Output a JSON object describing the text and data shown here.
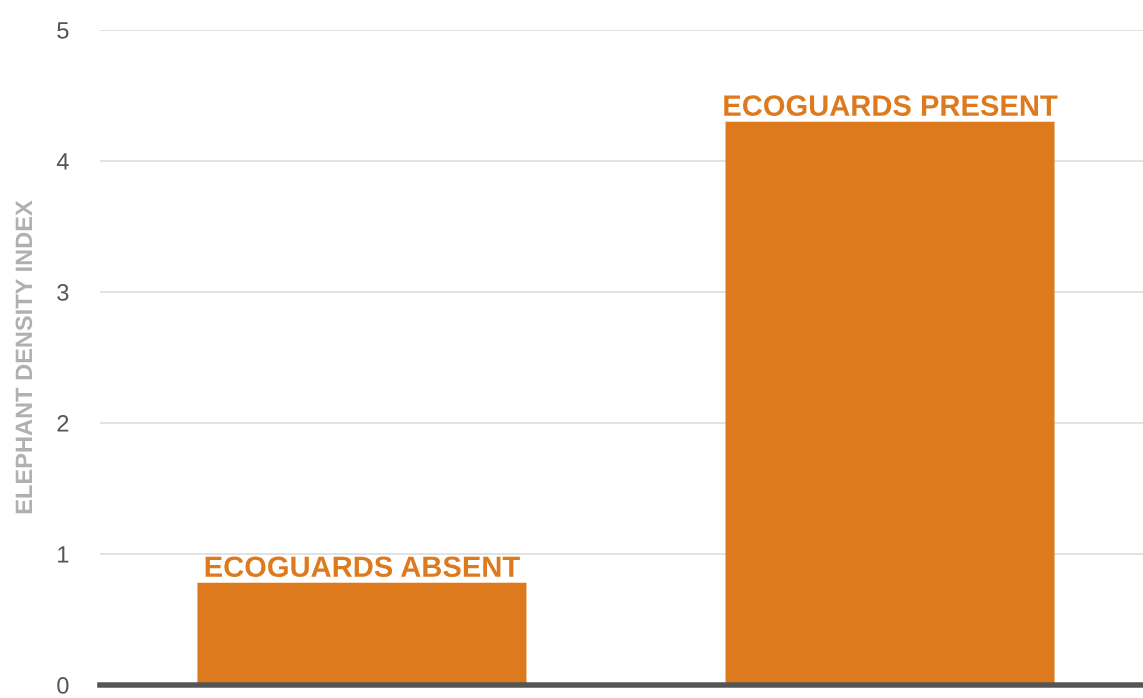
{
  "chart_data": {
    "type": "bar",
    "ylabel": "ELEPHANT DENSITY INDEX",
    "categories": [
      "ECOGUARDS ABSENT",
      "ECOGUARDS PRESENT"
    ],
    "values": [
      0.78,
      4.3
    ],
    "color": "#de7a1e",
    "ylim": [
      0,
      5
    ],
    "yticks": [
      0,
      1,
      2,
      3,
      4,
      5
    ],
    "grid": "y",
    "legend": false
  }
}
